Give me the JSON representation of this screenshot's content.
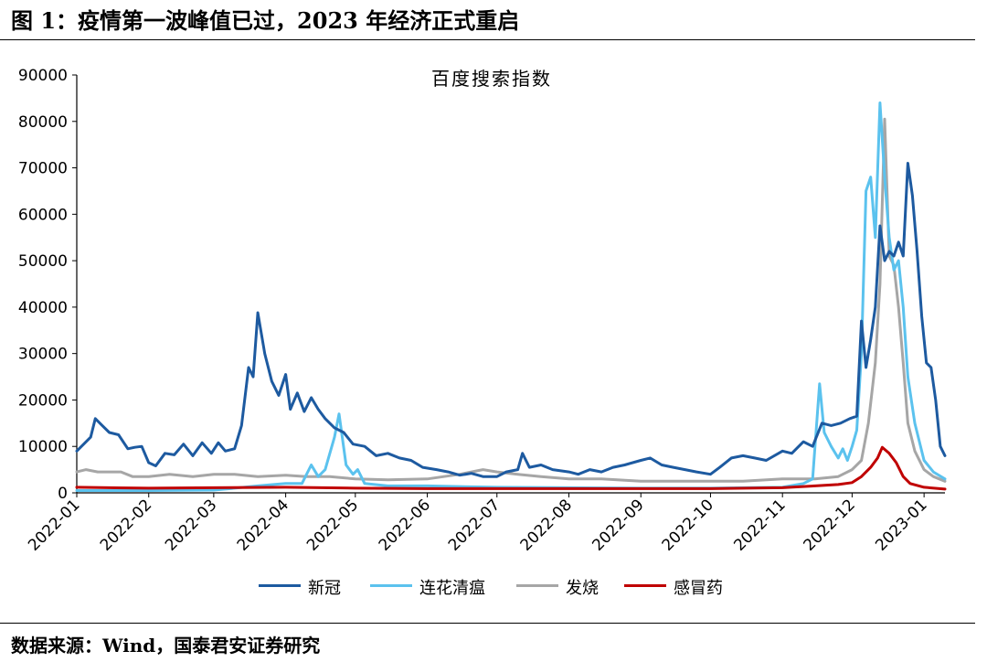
{
  "figure": {
    "title": "图 1：疫情第一波峰值已过，2023 年经济正式重启",
    "source": "数据来源：Wind，国泰君安证券研究"
  },
  "chart_data": {
    "type": "line",
    "title": "百度搜索指数",
    "xlabel": "",
    "ylabel": "",
    "x_ticks": [
      "2022-01",
      "2022-02",
      "2022-03",
      "2022-04",
      "2022-05",
      "2022-06",
      "2022-07",
      "2022-08",
      "2022-09",
      "2022-10",
      "2022-11",
      "2022-12",
      "2023-01"
    ],
    "y_ticks": [
      0,
      10000,
      20000,
      30000,
      40000,
      50000,
      60000,
      70000,
      80000,
      90000
    ],
    "ylim": [
      0,
      90000
    ],
    "xlim": [
      "2022-01-01",
      "2023-01-10"
    ],
    "legend_position": "bottom",
    "grid": false,
    "series": [
      {
        "name": "新冠",
        "color": "#1d5aa0",
        "points": [
          [
            "2022-01-01",
            9000
          ],
          [
            "2022-01-04",
            10500
          ],
          [
            "2022-01-07",
            12000
          ],
          [
            "2022-01-09",
            16000
          ],
          [
            "2022-01-12",
            14500
          ],
          [
            "2022-01-15",
            13000
          ],
          [
            "2022-01-19",
            12500
          ],
          [
            "2022-01-23",
            9500
          ],
          [
            "2022-01-26",
            9800
          ],
          [
            "2022-01-29",
            10000
          ],
          [
            "2022-02-01",
            6500
          ],
          [
            "2022-02-04",
            5800
          ],
          [
            "2022-02-08",
            8500
          ],
          [
            "2022-02-12",
            8200
          ],
          [
            "2022-02-16",
            10500
          ],
          [
            "2022-02-20",
            8000
          ],
          [
            "2022-02-24",
            10800
          ],
          [
            "2022-02-28",
            8500
          ],
          [
            "2022-03-03",
            10800
          ],
          [
            "2022-03-06",
            9000
          ],
          [
            "2022-03-10",
            9500
          ],
          [
            "2022-03-13",
            14500
          ],
          [
            "2022-03-16",
            27000
          ],
          [
            "2022-03-18",
            25000
          ],
          [
            "2022-03-20",
            38800
          ],
          [
            "2022-03-23",
            30000
          ],
          [
            "2022-03-26",
            24000
          ],
          [
            "2022-03-29",
            21000
          ],
          [
            "2022-04-01",
            25500
          ],
          [
            "2022-04-03",
            18000
          ],
          [
            "2022-04-06",
            21500
          ],
          [
            "2022-04-09",
            17500
          ],
          [
            "2022-04-12",
            20500
          ],
          [
            "2022-04-15",
            18000
          ],
          [
            "2022-04-18",
            16000
          ],
          [
            "2022-04-22",
            14000
          ],
          [
            "2022-04-26",
            13000
          ],
          [
            "2022-04-30",
            10500
          ],
          [
            "2022-05-05",
            10000
          ],
          [
            "2022-05-10",
            8000
          ],
          [
            "2022-05-15",
            8500
          ],
          [
            "2022-05-20",
            7500
          ],
          [
            "2022-05-25",
            7000
          ],
          [
            "2022-05-30",
            5500
          ],
          [
            "2022-06-05",
            5000
          ],
          [
            "2022-06-10",
            4500
          ],
          [
            "2022-06-15",
            3800
          ],
          [
            "2022-06-20",
            4200
          ],
          [
            "2022-06-25",
            3500
          ],
          [
            "2022-07-01",
            3500
          ],
          [
            "2022-07-05",
            4500
          ],
          [
            "2022-07-10",
            5000
          ],
          [
            "2022-07-12",
            8500
          ],
          [
            "2022-07-15",
            5500
          ],
          [
            "2022-07-20",
            6000
          ],
          [
            "2022-07-25",
            5000
          ],
          [
            "2022-08-01",
            4500
          ],
          [
            "2022-08-05",
            4000
          ],
          [
            "2022-08-10",
            5000
          ],
          [
            "2022-08-15",
            4500
          ],
          [
            "2022-08-20",
            5500
          ],
          [
            "2022-08-25",
            6000
          ],
          [
            "2022-09-01",
            7000
          ],
          [
            "2022-09-05",
            7500
          ],
          [
            "2022-09-10",
            6000
          ],
          [
            "2022-09-15",
            5500
          ],
          [
            "2022-09-20",
            5000
          ],
          [
            "2022-09-25",
            4500
          ],
          [
            "2022-10-01",
            4000
          ],
          [
            "2022-10-05",
            5500
          ],
          [
            "2022-10-10",
            7500
          ],
          [
            "2022-10-15",
            8000
          ],
          [
            "2022-10-20",
            7500
          ],
          [
            "2022-10-25",
            7000
          ],
          [
            "2022-11-01",
            9000
          ],
          [
            "2022-11-05",
            8500
          ],
          [
            "2022-11-10",
            11000
          ],
          [
            "2022-11-14",
            10000
          ],
          [
            "2022-11-18",
            15000
          ],
          [
            "2022-11-22",
            14500
          ],
          [
            "2022-11-26",
            15000
          ],
          [
            "2022-11-30",
            16000
          ],
          [
            "2022-12-03",
            16500
          ],
          [
            "2022-12-05",
            37000
          ],
          [
            "2022-12-07",
            27000
          ],
          [
            "2022-12-09",
            33000
          ],
          [
            "2022-12-11",
            40000
          ],
          [
            "2022-12-13",
            57500
          ],
          [
            "2022-12-15",
            50000
          ],
          [
            "2022-12-17",
            52000
          ],
          [
            "2022-12-19",
            51000
          ],
          [
            "2022-12-21",
            54000
          ],
          [
            "2022-12-23",
            51000
          ],
          [
            "2022-12-25",
            71000
          ],
          [
            "2022-12-27",
            64000
          ],
          [
            "2022-12-29",
            52000
          ],
          [
            "2022-12-31",
            38000
          ],
          [
            "2023-01-02",
            28000
          ],
          [
            "2023-01-04",
            27000
          ],
          [
            "2023-01-06",
            20000
          ],
          [
            "2023-01-08",
            10000
          ],
          [
            "2023-01-10",
            8000
          ]
        ]
      },
      {
        "name": "连花清瘟",
        "color": "#5bc2ee",
        "points": [
          [
            "2022-01-01",
            500
          ],
          [
            "2022-02-01",
            500
          ],
          [
            "2022-03-01",
            600
          ],
          [
            "2022-03-10",
            1000
          ],
          [
            "2022-03-20",
            1500
          ],
          [
            "2022-04-01",
            2000
          ],
          [
            "2022-04-08",
            2000
          ],
          [
            "2022-04-12",
            6000
          ],
          [
            "2022-04-15",
            3500
          ],
          [
            "2022-04-18",
            5000
          ],
          [
            "2022-04-22",
            12000
          ],
          [
            "2022-04-24",
            17000
          ],
          [
            "2022-04-27",
            6000
          ],
          [
            "2022-04-30",
            4000
          ],
          [
            "2022-05-02",
            5000
          ],
          [
            "2022-05-05",
            2000
          ],
          [
            "2022-05-15",
            1500
          ],
          [
            "2022-06-01",
            1500
          ],
          [
            "2022-07-01",
            1200
          ],
          [
            "2022-08-01",
            1100
          ],
          [
            "2022-09-01",
            1000
          ],
          [
            "2022-10-01",
            1000
          ],
          [
            "2022-11-01",
            1200
          ],
          [
            "2022-11-10",
            2000
          ],
          [
            "2022-11-14",
            3000
          ],
          [
            "2022-11-17",
            23500
          ],
          [
            "2022-11-19",
            13000
          ],
          [
            "2022-11-22",
            10000
          ],
          [
            "2022-11-25",
            7500
          ],
          [
            "2022-11-27",
            9500
          ],
          [
            "2022-11-29",
            7000
          ],
          [
            "2022-12-01",
            10000
          ],
          [
            "2022-12-03",
            13500
          ],
          [
            "2022-12-05",
            30000
          ],
          [
            "2022-12-07",
            65000
          ],
          [
            "2022-12-09",
            68000
          ],
          [
            "2022-12-11",
            55000
          ],
          [
            "2022-12-13",
            84000
          ],
          [
            "2022-12-15",
            68000
          ],
          [
            "2022-12-17",
            55000
          ],
          [
            "2022-12-19",
            48000
          ],
          [
            "2022-12-21",
            50000
          ],
          [
            "2022-12-23",
            40000
          ],
          [
            "2022-12-25",
            25000
          ],
          [
            "2022-12-28",
            15000
          ],
          [
            "2023-01-01",
            7000
          ],
          [
            "2023-01-05",
            4500
          ],
          [
            "2023-01-10",
            3000
          ]
        ]
      },
      {
        "name": "发烧",
        "color": "#a6a6a6",
        "points": [
          [
            "2022-01-01",
            4500
          ],
          [
            "2022-01-05",
            5000
          ],
          [
            "2022-01-10",
            4500
          ],
          [
            "2022-01-20",
            4500
          ],
          [
            "2022-01-25",
            3500
          ],
          [
            "2022-02-01",
            3500
          ],
          [
            "2022-02-10",
            4000
          ],
          [
            "2022-02-20",
            3500
          ],
          [
            "2022-03-01",
            4000
          ],
          [
            "2022-03-10",
            4000
          ],
          [
            "2022-03-20",
            3500
          ],
          [
            "2022-04-01",
            3800
          ],
          [
            "2022-04-10",
            3500
          ],
          [
            "2022-04-20",
            3500
          ],
          [
            "2022-05-01",
            3000
          ],
          [
            "2022-05-15",
            2800
          ],
          [
            "2022-06-01",
            3000
          ],
          [
            "2022-06-15",
            4000
          ],
          [
            "2022-06-25",
            5000
          ],
          [
            "2022-07-01",
            4500
          ],
          [
            "2022-07-10",
            4000
          ],
          [
            "2022-07-20",
            3500
          ],
          [
            "2022-08-01",
            3000
          ],
          [
            "2022-08-15",
            3000
          ],
          [
            "2022-09-01",
            2500
          ],
          [
            "2022-09-15",
            2500
          ],
          [
            "2022-10-01",
            2500
          ],
          [
            "2022-10-15",
            2500
          ],
          [
            "2022-11-01",
            3000
          ],
          [
            "2022-11-15",
            3000
          ],
          [
            "2022-11-25",
            3500
          ],
          [
            "2022-12-01",
            5000
          ],
          [
            "2022-12-05",
            7000
          ],
          [
            "2022-12-08",
            15000
          ],
          [
            "2022-12-11",
            28000
          ],
          [
            "2022-12-13",
            45000
          ],
          [
            "2022-12-15",
            80500
          ],
          [
            "2022-12-17",
            51000
          ],
          [
            "2022-12-19",
            49000
          ],
          [
            "2022-12-21",
            40000
          ],
          [
            "2022-12-23",
            28000
          ],
          [
            "2022-12-25",
            15000
          ],
          [
            "2022-12-28",
            9000
          ],
          [
            "2023-01-01",
            5000
          ],
          [
            "2023-01-05",
            3500
          ],
          [
            "2023-01-10",
            2500
          ]
        ]
      },
      {
        "name": "感冒药",
        "color": "#c00000",
        "points": [
          [
            "2022-01-01",
            1200
          ],
          [
            "2022-02-01",
            1000
          ],
          [
            "2022-03-01",
            1100
          ],
          [
            "2022-04-01",
            1200
          ],
          [
            "2022-05-01",
            1000
          ],
          [
            "2022-06-01",
            900
          ],
          [
            "2022-07-01",
            900
          ],
          [
            "2022-08-01",
            900
          ],
          [
            "2022-09-01",
            900
          ],
          [
            "2022-10-01",
            900
          ],
          [
            "2022-11-01",
            1100
          ],
          [
            "2022-11-15",
            1500
          ],
          [
            "2022-11-25",
            1800
          ],
          [
            "2022-12-01",
            2200
          ],
          [
            "2022-12-05",
            3500
          ],
          [
            "2022-12-09",
            5500
          ],
          [
            "2022-12-12",
            7500
          ],
          [
            "2022-12-14",
            9800
          ],
          [
            "2022-12-17",
            8500
          ],
          [
            "2022-12-20",
            6500
          ],
          [
            "2022-12-23",
            3500
          ],
          [
            "2022-12-26",
            2000
          ],
          [
            "2023-01-01",
            1200
          ],
          [
            "2023-01-10",
            800
          ]
        ]
      }
    ]
  }
}
